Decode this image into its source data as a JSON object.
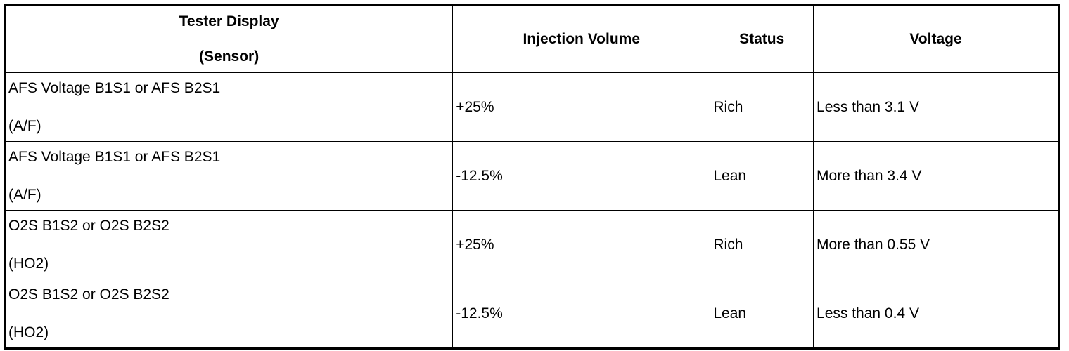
{
  "headers": {
    "sensor_line1": "Tester Display",
    "sensor_line2": "(Sensor)",
    "injection": "Injection Volume",
    "status": "Status",
    "voltage": "Voltage"
  },
  "rows": [
    {
      "sensor": "AFS Voltage B1S1 or AFS B2S1",
      "sensor_type": "(A/F)",
      "injection": "+25%",
      "status": "Rich",
      "voltage": "Less than 3.1 V"
    },
    {
      "sensor": "AFS Voltage B1S1 or AFS B2S1",
      "sensor_type": "(A/F)",
      "injection": "-12.5%",
      "status": "Lean",
      "voltage": "More than 3.4 V"
    },
    {
      "sensor": "O2S B1S2 or O2S B2S2",
      "sensor_type": "(HO2)",
      "injection": "+25%",
      "status": "Rich",
      "voltage": "More than 0.55 V"
    },
    {
      "sensor": "O2S B1S2 or O2S B2S2",
      "sensor_type": "(HO2)",
      "injection": "-12.5%",
      "status": "Lean",
      "voltage": "Less than 0.4 V"
    }
  ]
}
